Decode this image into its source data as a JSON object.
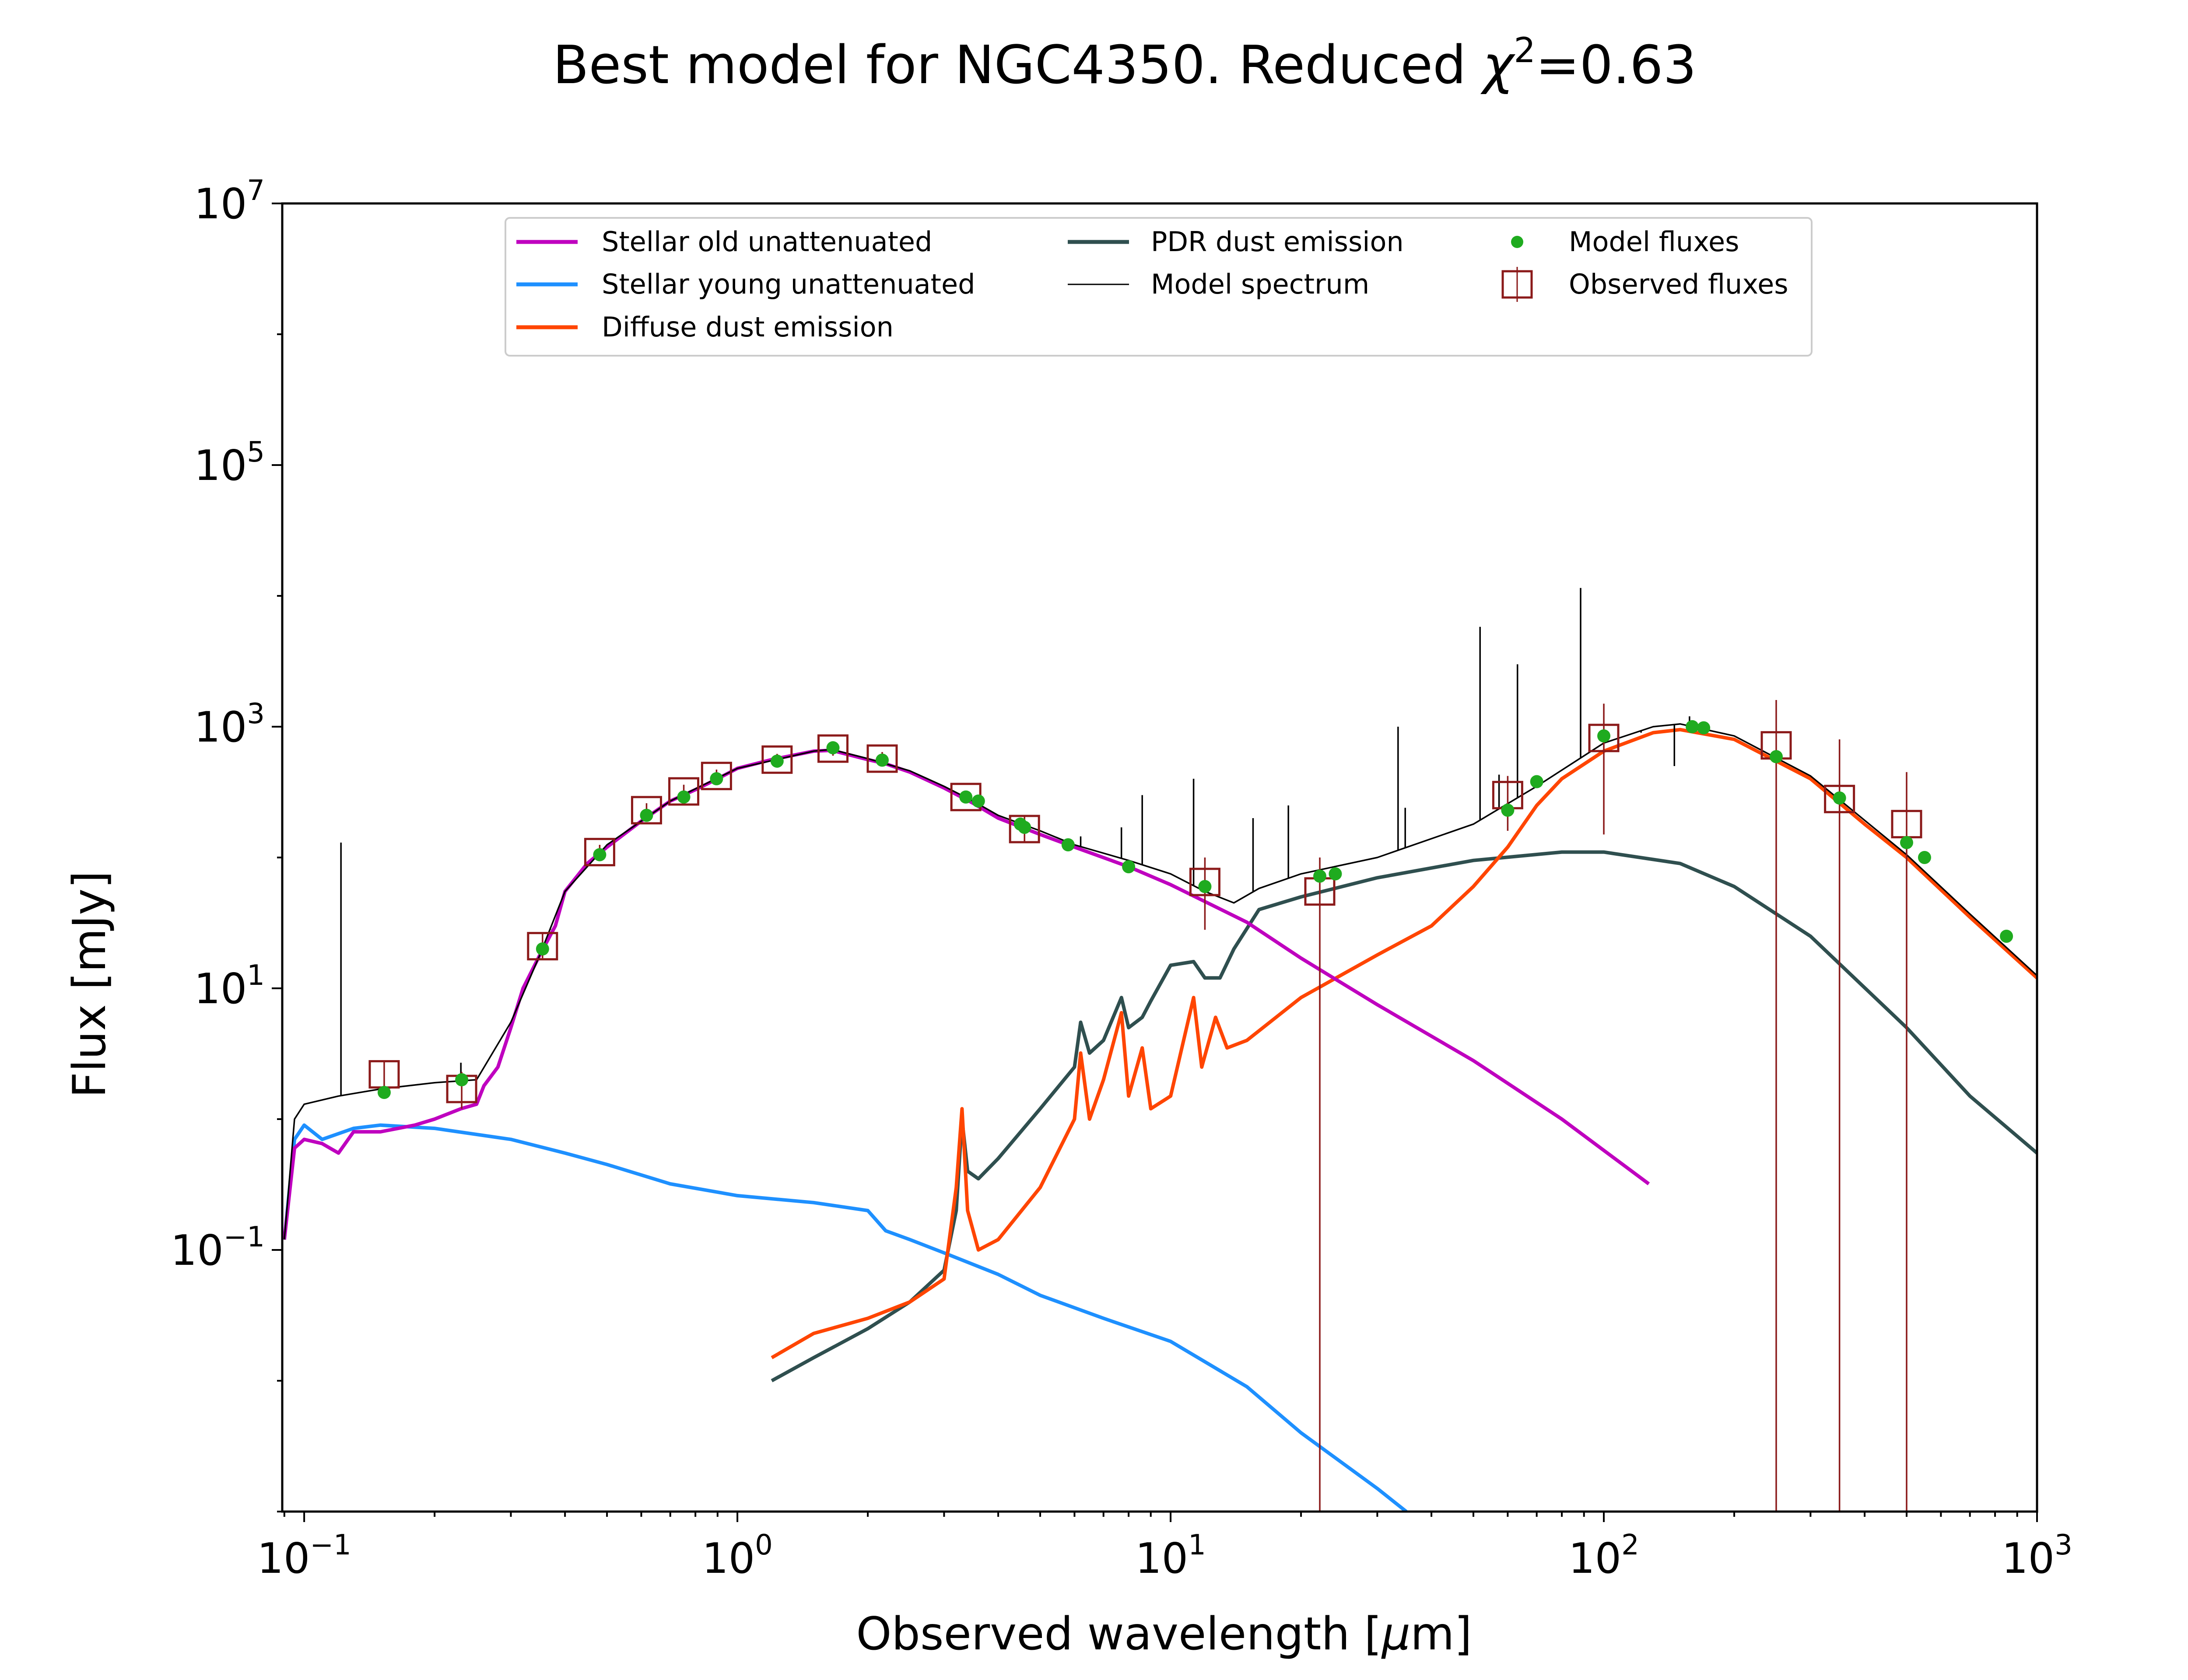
{
  "chart_data": {
    "type": "line",
    "title": "Best model for NGC4350. Reduced χ²=0.63",
    "title_parts": {
      "main": "Best model for NGC4350. Reduced ",
      "chi": "χ",
      "chi_exp": "2",
      "value": "=0.63"
    },
    "xlabel": "Observed wavelength [μm]",
    "xlabel_parts": {
      "pre": "Observed wavelength [",
      "mu": "μ",
      "post": "m]"
    },
    "ylabel": "Flux [mJy]",
    "xscale": "log",
    "yscale": "log",
    "xlim": [
      0.089,
      1000
    ],
    "ylim": [
      0.001,
      10000000
    ],
    "grid": false,
    "legend_position": "top-center",
    "x_ticks": [
      {
        "value": 0.1,
        "base": "10",
        "exp": "−1"
      },
      {
        "value": 1,
        "base": "10",
        "exp": "0"
      },
      {
        "value": 10,
        "base": "10",
        "exp": "1"
      },
      {
        "value": 100,
        "base": "10",
        "exp": "2"
      },
      {
        "value": 1000,
        "base": "10",
        "exp": "3"
      }
    ],
    "y_ticks": [
      {
        "value": 0.1,
        "base": "10",
        "exp": "−1"
      },
      {
        "value": 10,
        "base": "10",
        "exp": "1"
      },
      {
        "value": 1000,
        "base": "10",
        "exp": "3"
      },
      {
        "value": 100000,
        "base": "10",
        "exp": "5"
      },
      {
        "value": 10000000,
        "base": "10",
        "exp": "7"
      }
    ],
    "series": [
      {
        "name": "Stellar old unattenuated",
        "style": "line",
        "color": "#bf00bf",
        "points": [
          [
            0.09,
            0.12
          ],
          [
            0.095,
            0.6
          ],
          [
            0.1,
            0.7
          ],
          [
            0.11,
            0.65
          ],
          [
            0.12,
            0.55
          ],
          [
            0.13,
            0.8
          ],
          [
            0.15,
            0.8
          ],
          [
            0.18,
            0.9
          ],
          [
            0.2,
            1.0
          ],
          [
            0.23,
            1.2
          ],
          [
            0.25,
            1.3
          ],
          [
            0.26,
            1.8
          ],
          [
            0.28,
            2.5
          ],
          [
            0.3,
            5
          ],
          [
            0.32,
            10
          ],
          [
            0.35,
            18
          ],
          [
            0.38,
            30
          ],
          [
            0.4,
            55
          ],
          [
            0.45,
            90
          ],
          [
            0.5,
            120
          ],
          [
            0.6,
            190
          ],
          [
            0.7,
            270
          ],
          [
            0.8,
            330
          ],
          [
            0.9,
            400
          ],
          [
            1.0,
            480
          ],
          [
            1.2,
            560
          ],
          [
            1.5,
            650
          ],
          [
            1.65,
            660
          ],
          [
            2.0,
            560
          ],
          [
            2.2,
            520
          ],
          [
            2.5,
            450
          ],
          [
            3.0,
            340
          ],
          [
            3.5,
            260
          ],
          [
            4.0,
            200
          ],
          [
            5.0,
            150
          ],
          [
            6.0,
            120
          ],
          [
            8.0,
            85
          ],
          [
            10.0,
            62
          ],
          [
            15.0,
            32
          ],
          [
            20.0,
            17
          ],
          [
            30.0,
            7.5
          ],
          [
            50.0,
            2.8
          ],
          [
            80.0,
            1.0
          ],
          [
            127.0,
            0.32
          ]
        ]
      },
      {
        "name": "Stellar young unattenuated",
        "style": "line",
        "color": "#1e90ff",
        "points": [
          [
            0.09,
            0.12
          ],
          [
            0.095,
            0.7
          ],
          [
            0.1,
            0.9
          ],
          [
            0.11,
            0.7
          ],
          [
            0.13,
            0.85
          ],
          [
            0.15,
            0.9
          ],
          [
            0.2,
            0.85
          ],
          [
            0.3,
            0.7
          ],
          [
            0.4,
            0.55
          ],
          [
            0.5,
            0.45
          ],
          [
            0.7,
            0.32
          ],
          [
            1.0,
            0.26
          ],
          [
            1.5,
            0.23
          ],
          [
            2.0,
            0.2
          ],
          [
            2.2,
            0.14
          ],
          [
            2.5,
            0.12
          ],
          [
            3.0,
            0.095
          ],
          [
            4.0,
            0.065
          ],
          [
            5.0,
            0.045
          ],
          [
            7.0,
            0.03
          ],
          [
            10.0,
            0.02
          ],
          [
            15.0,
            0.009
          ],
          [
            20.0,
            0.004
          ],
          [
            30.0,
            0.0015
          ],
          [
            35.0,
            0.001
          ]
        ]
      },
      {
        "name": "Diffuse dust emission",
        "style": "line",
        "color": "#ff4500",
        "points": [
          [
            1.2,
            0.015
          ],
          [
            1.5,
            0.023
          ],
          [
            2.0,
            0.03
          ],
          [
            2.5,
            0.04
          ],
          [
            3.0,
            0.06
          ],
          [
            3.2,
            0.3
          ],
          [
            3.3,
            1.2
          ],
          [
            3.4,
            0.2
          ],
          [
            3.6,
            0.1
          ],
          [
            4.0,
            0.12
          ],
          [
            5.0,
            0.3
          ],
          [
            6.0,
            1.0
          ],
          [
            6.2,
            3.2
          ],
          [
            6.5,
            1.0
          ],
          [
            7.0,
            2.0
          ],
          [
            7.7,
            6.5
          ],
          [
            8.0,
            1.5
          ],
          [
            8.6,
            3.5
          ],
          [
            9.0,
            1.2
          ],
          [
            10.0,
            1.5
          ],
          [
            11.3,
            8.5
          ],
          [
            11.8,
            2.5
          ],
          [
            12.7,
            6
          ],
          [
            13.5,
            3.5
          ],
          [
            15.0,
            4
          ],
          [
            20.0,
            8.5
          ],
          [
            30.0,
            18
          ],
          [
            40.0,
            30
          ],
          [
            50.0,
            60
          ],
          [
            60.0,
            120
          ],
          [
            70.0,
            250
          ],
          [
            80.0,
            400
          ],
          [
            100.0,
            650
          ],
          [
            130.0,
            900
          ],
          [
            150.0,
            950
          ],
          [
            200.0,
            800
          ],
          [
            300.0,
            400
          ],
          [
            400.0,
            180
          ],
          [
            500.0,
            100
          ],
          [
            700.0,
            35
          ],
          [
            1000.0,
            12
          ]
        ]
      },
      {
        "name": "PDR dust emission",
        "style": "line",
        "color": "#2f4f4f",
        "points": [
          [
            1.2,
            0.01
          ],
          [
            1.5,
            0.015
          ],
          [
            2.0,
            0.025
          ],
          [
            2.5,
            0.04
          ],
          [
            3.0,
            0.07
          ],
          [
            3.2,
            0.2
          ],
          [
            3.3,
            1.0
          ],
          [
            3.4,
            0.4
          ],
          [
            3.6,
            0.35
          ],
          [
            4.0,
            0.5
          ],
          [
            5.0,
            1.2
          ],
          [
            6.0,
            2.5
          ],
          [
            6.2,
            5.5
          ],
          [
            6.5,
            3.2
          ],
          [
            7.0,
            4
          ],
          [
            7.7,
            8.5
          ],
          [
            8.0,
            5
          ],
          [
            8.6,
            6
          ],
          [
            9.0,
            8
          ],
          [
            10.0,
            15
          ],
          [
            11.3,
            16
          ],
          [
            12.0,
            12
          ],
          [
            13.0,
            12
          ],
          [
            14.0,
            20
          ],
          [
            16.0,
            40
          ],
          [
            20.0,
            50
          ],
          [
            30.0,
            70
          ],
          [
            50.0,
            95
          ],
          [
            80.0,
            110
          ],
          [
            100.0,
            110
          ],
          [
            150.0,
            90
          ],
          [
            200.0,
            60
          ],
          [
            300.0,
            25
          ],
          [
            500.0,
            5
          ],
          [
            700.0,
            1.5
          ],
          [
            1000.0,
            0.55
          ]
        ]
      },
      {
        "name": "Model spectrum",
        "style": "line",
        "color": "#000000",
        "points": [
          [
            0.09,
            0.12
          ],
          [
            0.095,
            1.0
          ],
          [
            0.1,
            1.3
          ],
          [
            0.12,
            1.5
          ],
          [
            0.15,
            1.7
          ],
          [
            0.2,
            1.9
          ],
          [
            0.25,
            2.0
          ],
          [
            0.3,
            5.5
          ],
          [
            0.35,
            18
          ],
          [
            0.4,
            55
          ],
          [
            0.5,
            125
          ],
          [
            0.7,
            270
          ],
          [
            1.0,
            480
          ],
          [
            1.5,
            650
          ],
          [
            1.65,
            670
          ],
          [
            2.0,
            570
          ],
          [
            2.5,
            460
          ],
          [
            3.0,
            350
          ],
          [
            3.5,
            270
          ],
          [
            4.0,
            210
          ],
          [
            5.0,
            160
          ],
          [
            6.0,
            125
          ],
          [
            8.0,
            95
          ],
          [
            10.0,
            75
          ],
          [
            12.0,
            55
          ],
          [
            14.0,
            45
          ],
          [
            16.0,
            58
          ],
          [
            20.0,
            75
          ],
          [
            30.0,
            100
          ],
          [
            50.0,
            180
          ],
          [
            70.0,
            350
          ],
          [
            100.0,
            750
          ],
          [
            130.0,
            1000
          ],
          [
            150.0,
            1050
          ],
          [
            200.0,
            850
          ],
          [
            300.0,
            420
          ],
          [
            500.0,
            105
          ],
          [
            700.0,
            37
          ],
          [
            1000.0,
            12.5
          ]
        ],
        "emission_lines": [
          [
            0.1216,
            130
          ],
          [
            0.23,
            2.7
          ],
          [
            0.37,
            28
          ],
          [
            6.2,
            145
          ],
          [
            7.7,
            170
          ],
          [
            8.6,
            300
          ],
          [
            11.3,
            400
          ],
          [
            15.5,
            200
          ],
          [
            18.7,
            250
          ],
          [
            33.5,
            1000
          ],
          [
            34.8,
            240
          ],
          [
            51.8,
            5800
          ],
          [
            57.3,
            430
          ],
          [
            63.2,
            3000
          ],
          [
            88.4,
            11500
          ],
          [
            121.9,
            900
          ],
          [
            145.5,
            500
          ],
          [
            157.7,
            1200
          ]
        ]
      },
      {
        "name": "Model fluxes",
        "style": "markers",
        "color": "#1fab1f",
        "points": [
          [
            0.153,
            1.6
          ],
          [
            0.231,
            2.0
          ],
          [
            0.355,
            20
          ],
          [
            0.481,
            105
          ],
          [
            0.617,
            210
          ],
          [
            0.752,
            290
          ],
          [
            0.895,
            400
          ],
          [
            1.235,
            545
          ],
          [
            1.662,
            690
          ],
          [
            2.159,
            555
          ],
          [
            3.368,
            290
          ],
          [
            3.6,
            270
          ],
          [
            4.5,
            180
          ],
          [
            4.6,
            170
          ],
          [
            5.8,
            125
          ],
          [
            8.0,
            85
          ],
          [
            12.0,
            60
          ],
          [
            22.1,
            72
          ],
          [
            24.0,
            75
          ],
          [
            60.0,
            230
          ],
          [
            70.0,
            380
          ],
          [
            100.0,
            850
          ],
          [
            160.0,
            1000
          ],
          [
            170.0,
            980
          ],
          [
            250.0,
            590
          ],
          [
            350.0,
            285
          ],
          [
            500.0,
            130
          ],
          [
            550.0,
            100
          ],
          [
            850.0,
            25
          ]
        ]
      },
      {
        "name": "Observed fluxes",
        "style": "squares-with-errorbars",
        "color": "#8b1a1a",
        "points": [
          {
            "x": 0.153,
            "y": 2.2,
            "lo": 1.7,
            "hi": 2.8
          },
          {
            "x": 0.231,
            "y": 1.7,
            "lo": 1.2,
            "hi": 2.3
          },
          {
            "x": 0.355,
            "y": 21,
            "lo": 17,
            "hi": 26
          },
          {
            "x": 0.481,
            "y": 110,
            "lo": 95,
            "hi": 125
          },
          {
            "x": 0.617,
            "y": 230,
            "lo": 200,
            "hi": 260
          },
          {
            "x": 0.752,
            "y": 320,
            "lo": 280,
            "hi": 360
          },
          {
            "x": 0.895,
            "y": 420,
            "lo": 370,
            "hi": 470
          },
          {
            "x": 1.235,
            "y": 560,
            "lo": 500,
            "hi": 620
          },
          {
            "x": 1.662,
            "y": 680,
            "lo": 600,
            "hi": 760
          },
          {
            "x": 2.159,
            "y": 570,
            "lo": 500,
            "hi": 640
          },
          {
            "x": 3.368,
            "y": 290,
            "lo": 260,
            "hi": 320
          },
          {
            "x": 4.6,
            "y": 165,
            "lo": 130,
            "hi": 210
          },
          {
            "x": 12.0,
            "y": 65,
            "lo": 28,
            "hi": 100
          },
          {
            "x": 22.1,
            "y": 55,
            "lo": 0.001,
            "hi": 100
          },
          {
            "x": 60.0,
            "y": 300,
            "lo": 160,
            "hi": 420
          },
          {
            "x": 100.0,
            "y": 820,
            "lo": 150,
            "hi": 1500
          },
          {
            "x": 250.0,
            "y": 720,
            "lo": 0.001,
            "hi": 1600
          },
          {
            "x": 350.0,
            "y": 280,
            "lo": 0.001,
            "hi": 800
          },
          {
            "x": 500.0,
            "y": 180,
            "lo": 0.001,
            "hi": 450
          }
        ]
      }
    ],
    "legend": [
      {
        "label": "Stellar old unattenuated",
        "type": "line",
        "color": "#bf00bf"
      },
      {
        "label": "Stellar young unattenuated",
        "type": "line",
        "color": "#1e90ff"
      },
      {
        "label": "Diffuse dust emission",
        "type": "line",
        "color": "#ff4500"
      },
      {
        "label": "PDR dust emission",
        "type": "line",
        "color": "#2f4f4f"
      },
      {
        "label": "Model spectrum",
        "type": "thin-line",
        "color": "#000000"
      },
      {
        "label": "Model fluxes",
        "type": "dot",
        "color": "#1fab1f"
      },
      {
        "label": "Observed fluxes",
        "type": "square",
        "color": "#8b1a1a"
      }
    ]
  }
}
